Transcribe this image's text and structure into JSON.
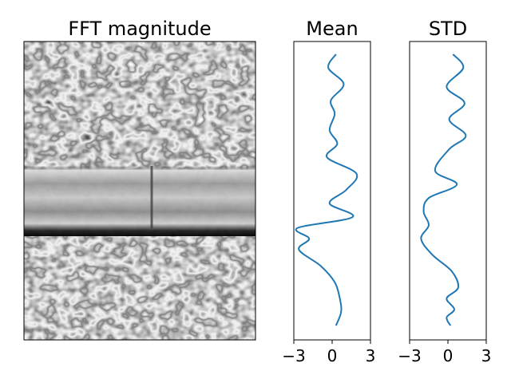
{
  "chart_data": [
    {
      "type": "heatmap",
      "title": "FFT magnitude",
      "colormap": "gray",
      "description_rows": {
        "band_bright_rows": [
          0.43,
          0.62
        ],
        "band_dark_row": 0.65
      }
    },
    {
      "type": "line",
      "title": "Mean",
      "orientation": "vertical-profile",
      "xlim": [
        -3,
        3
      ],
      "xticks": [
        "−3",
        "0",
        "3"
      ],
      "color": "#1f77b4",
      "x": [
        0.3,
        -0.3,
        0.9,
        -0.1,
        0.2,
        -0.2,
        0.4,
        -0.4,
        1.9,
        1.1,
        -0.2,
        1.6,
        -2.7,
        -1.8,
        -2.6,
        -0.9,
        0.2,
        0.6,
        0.7,
        0.3
      ],
      "y": [
        0,
        0.05,
        0.11,
        0.17,
        0.22,
        0.28,
        0.33,
        0.38,
        0.44,
        0.5,
        0.55,
        0.6,
        0.64,
        0.68,
        0.72,
        0.78,
        0.84,
        0.9,
        0.95,
        1.0
      ]
    },
    {
      "type": "line",
      "title": "STD",
      "orientation": "vertical-profile",
      "xlim": [
        -3,
        3
      ],
      "xticks": [
        "−3",
        "0",
        "3"
      ],
      "color": "#1f77b4",
      "x": [
        0.4,
        1.2,
        -0.1,
        1.3,
        0.1,
        1.4,
        0.1,
        -1.0,
        0.7,
        -1.5,
        -1.9,
        -1.5,
        -2.1,
        -1.2,
        0.3,
        0.8,
        -0.1,
        0.5,
        -0.1,
        0.2
      ],
      "y": [
        0,
        0.05,
        0.12,
        0.18,
        0.24,
        0.3,
        0.35,
        0.43,
        0.48,
        0.53,
        0.58,
        0.63,
        0.68,
        0.74,
        0.8,
        0.86,
        0.9,
        0.94,
        0.97,
        1.0
      ]
    }
  ]
}
